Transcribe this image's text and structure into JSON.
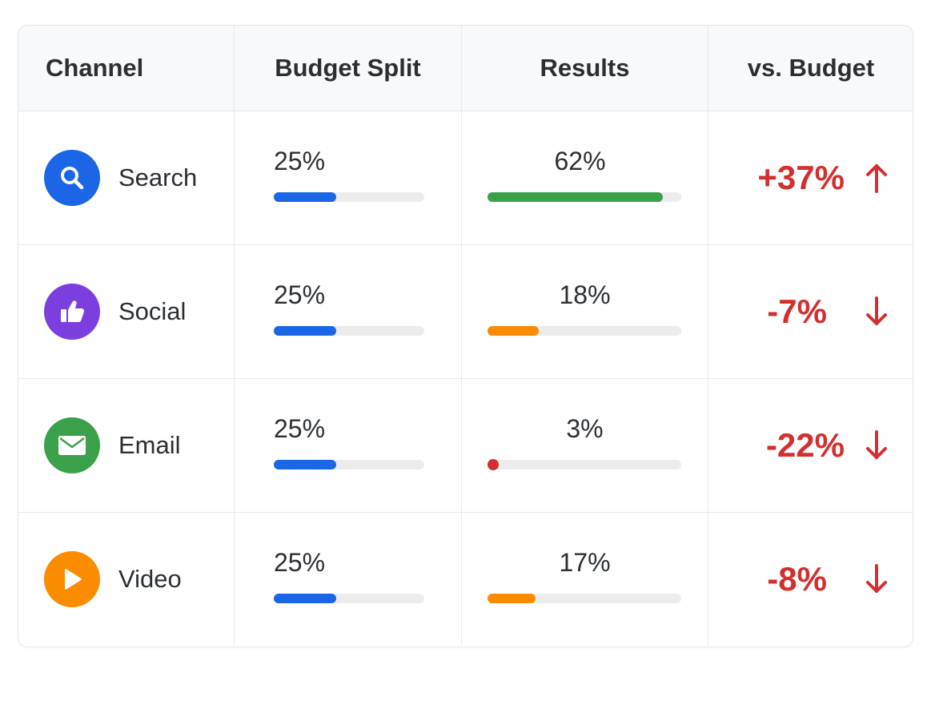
{
  "header": {
    "channel": "Channel",
    "budget_split": "Budget Split",
    "results": "Results",
    "vs_budget": "vs. Budget"
  },
  "colors": {
    "budget_bar": "#1a66e6",
    "delta_negative_text": "#d32f2f",
    "track": "#ececec"
  },
  "rows": [
    {
      "channel": "Search",
      "icon": "search-icon",
      "icon_color": "#1a66e6",
      "budget": "25%",
      "budget_value": 25,
      "result": "62%",
      "result_value": 62,
      "result_bar_color": "#3aa04a",
      "delta": "+37%",
      "delta_direction": "up"
    },
    {
      "channel": "Social",
      "icon": "thumbs-up-icon",
      "icon_color": "#7b3fe0",
      "budget": "25%",
      "budget_value": 25,
      "result": "18%",
      "result_value": 18,
      "result_bar_color": "#fb8c00",
      "delta": "-7%",
      "delta_direction": "down"
    },
    {
      "channel": "Email",
      "icon": "mail-icon",
      "icon_color": "#3aa04a",
      "budget": "25%",
      "budget_value": 25,
      "result": "3%",
      "result_value": 3,
      "result_bar_color": "#d32f2f",
      "delta": "-22%",
      "delta_direction": "down"
    },
    {
      "channel": "Video",
      "icon": "play-icon",
      "icon_color": "#fb8c00",
      "budget": "25%",
      "budget_value": 25,
      "result": "17%",
      "result_value": 17,
      "result_bar_color": "#fb8c00",
      "delta": "-8%",
      "delta_direction": "down"
    }
  ]
}
